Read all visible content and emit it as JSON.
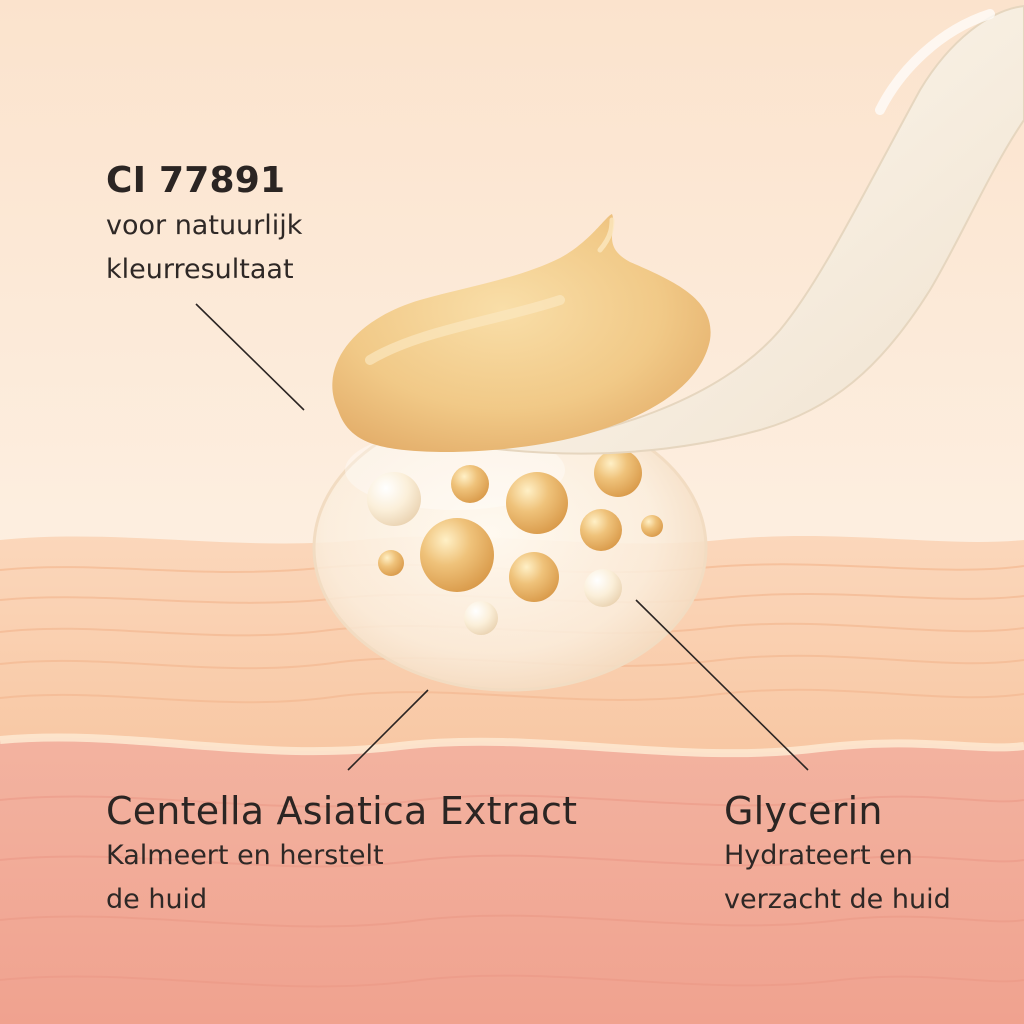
{
  "callouts": {
    "colorant": {
      "title": "CI 77891",
      "line1": "voor natuurlijk",
      "line2": "kleurresultaat"
    },
    "centella": {
      "title": "Centella Asiatica Extract",
      "line1": "Kalmeert en herstelt",
      "line2": "de huid"
    },
    "glycerin": {
      "title": "Glycerin",
      "line1": "Hydrateert en",
      "line2": "verzacht de huid"
    }
  },
  "colors": {
    "background_top": "#fbe6d3",
    "background_bottom": "#fdf0e4",
    "skin_upper": "#f8cfae",
    "skin_lower": "#f1a99a",
    "cream": "#f2cf8f",
    "spatula": "#f7efe3",
    "leader_line": "#2b2523"
  }
}
